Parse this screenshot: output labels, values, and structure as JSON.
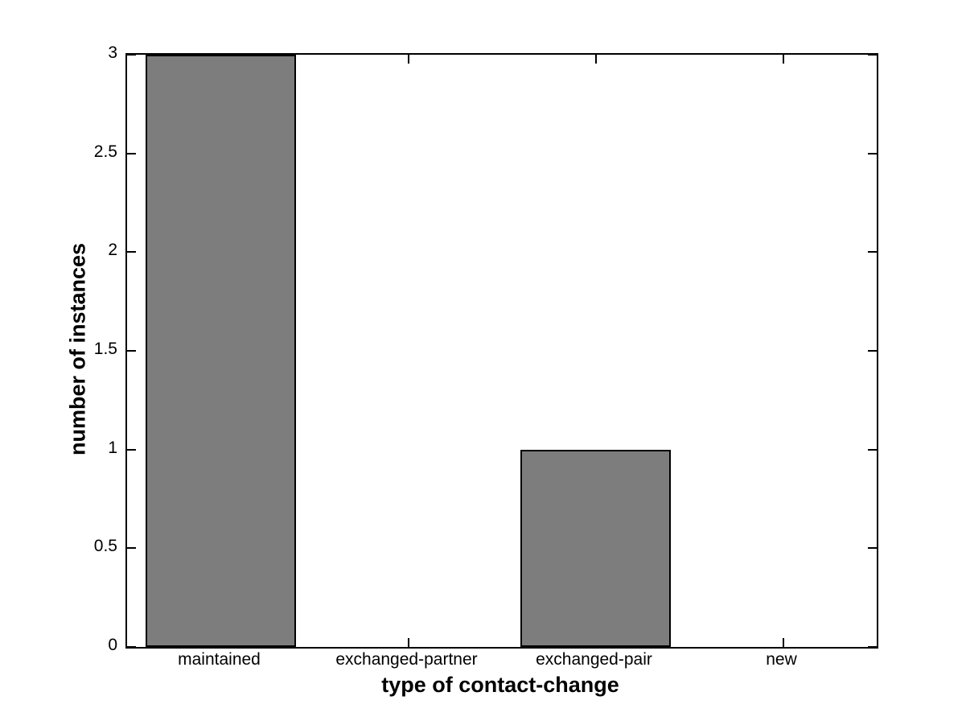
{
  "figure": {
    "background": "#ffffff"
  },
  "chart_data": {
    "type": "bar",
    "categories": [
      "maintained",
      "exchanged-partner",
      "exchanged-pair",
      "new"
    ],
    "values": [
      3,
      0,
      1,
      0
    ],
    "title": "",
    "xlabel": "type of contact-change",
    "ylabel": "number of instances",
    "ylim": [
      0,
      3
    ],
    "yticks": [
      0,
      0.5,
      1,
      1.5,
      2,
      2.5,
      3
    ],
    "ytick_labels": [
      "0",
      "0.5",
      "1",
      "1.5",
      "2",
      "2.5",
      "3"
    ],
    "bar_width_fraction": 0.8,
    "bar_fill": "#7d7d7d",
    "bar_edge": "#000000",
    "axes_color": "#000000",
    "grid": false,
    "legend_visible": false
  }
}
